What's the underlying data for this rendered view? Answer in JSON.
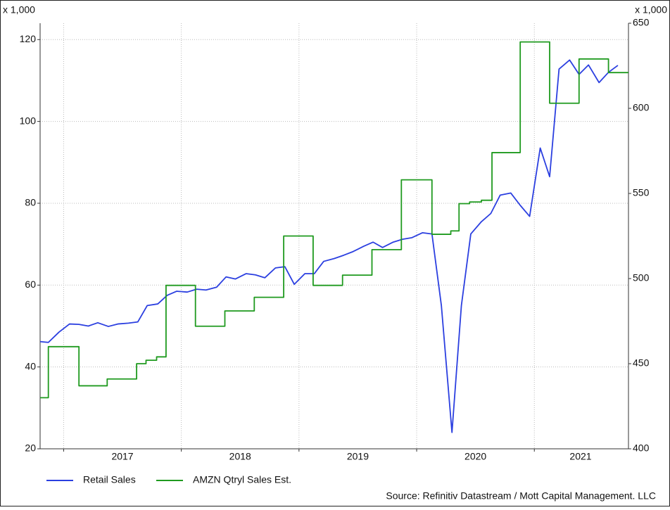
{
  "chart_data": {
    "type": "line",
    "y_unit_label": "x 1,000",
    "y2_unit_label": "x 1,000",
    "source": "Source: Refinitiv Datastream / Mott Capital Management. LLC",
    "xlim": [
      2016.8,
      2021.8
    ],
    "xticks": [
      {
        "value": 2017,
        "label": "2017"
      },
      {
        "value": 2018,
        "label": "2018"
      },
      {
        "value": 2019,
        "label": "2019"
      },
      {
        "value": 2020,
        "label": "2020"
      },
      {
        "value": 2021,
        "label": "2021"
      }
    ],
    "ylim": [
      20,
      124
    ],
    "yticks": [
      20,
      40,
      60,
      80,
      100,
      120
    ],
    "y2lim": [
      400,
      650
    ],
    "y2ticks": [
      400,
      450,
      500,
      550,
      600,
      650
    ],
    "grid": true,
    "legend": "bottom",
    "series": [
      {
        "name": "Retail Sales",
        "color": "#2b3fe0",
        "axis": "y",
        "x": [
          2016.8,
          2016.87,
          2016.96,
          2017.05,
          2017.13,
          2017.21,
          2017.29,
          2017.38,
          2017.46,
          2017.55,
          2017.63,
          2017.71,
          2017.8,
          2017.88,
          2017.96,
          2018.05,
          2018.13,
          2018.21,
          2018.3,
          2018.38,
          2018.46,
          2018.55,
          2018.63,
          2018.71,
          2018.8,
          2018.88,
          2018.96,
          2019.05,
          2019.13,
          2019.21,
          2019.3,
          2019.38,
          2019.46,
          2019.55,
          2019.63,
          2019.71,
          2019.8,
          2019.88,
          2019.96,
          2020.05,
          2020.13,
          2020.21,
          2020.3,
          2020.38,
          2020.46,
          2020.55,
          2020.63,
          2020.71,
          2020.8,
          2020.88,
          2020.96,
          2021.05,
          2021.13,
          2021.21,
          2021.3,
          2021.38,
          2021.46,
          2021.55,
          2021.63,
          2021.71
        ],
        "values": [
          46.2,
          46.0,
          48.5,
          50.5,
          50.4,
          50.0,
          50.8,
          49.9,
          50.5,
          50.7,
          51.0,
          55.0,
          55.4,
          57.5,
          58.5,
          58.3,
          59.0,
          58.8,
          59.5,
          62.0,
          61.5,
          62.8,
          62.5,
          61.8,
          64.2,
          64.5,
          60.2,
          62.8,
          62.8,
          65.8,
          66.5,
          67.3,
          68.2,
          69.5,
          70.5,
          69.2,
          70.5,
          71.2,
          71.6,
          72.8,
          72.5,
          55.0,
          24.0,
          55.0,
          72.5,
          75.5,
          77.5,
          82.0,
          82.5,
          79.5,
          76.8,
          93.5,
          86.5,
          112.8,
          115.0,
          111.5,
          113.8,
          109.5,
          112.0,
          113.7
        ]
      },
      {
        "name": "AMZN Qtryl Sales Est.",
        "color": "#1f9a1f",
        "axis": "y2",
        "step": "post",
        "x": [
          2016.8,
          2016.87,
          2017.13,
          2017.37,
          2017.62,
          2017.7,
          2017.79,
          2017.87,
          2018.12,
          2018.37,
          2018.62,
          2018.87,
          2019.12,
          2019.37,
          2019.62,
          2019.87,
          2020.13,
          2020.29,
          2020.36,
          2020.45,
          2020.55,
          2020.64,
          2020.88,
          2021.13,
          2021.38,
          2021.63
        ],
        "values": [
          430,
          460,
          437,
          441,
          450,
          452,
          454,
          496,
          472,
          481,
          489,
          525,
          496,
          502,
          517,
          558,
          526,
          528,
          544,
          545,
          546,
          574,
          639,
          603,
          629,
          621
        ]
      }
    ]
  }
}
